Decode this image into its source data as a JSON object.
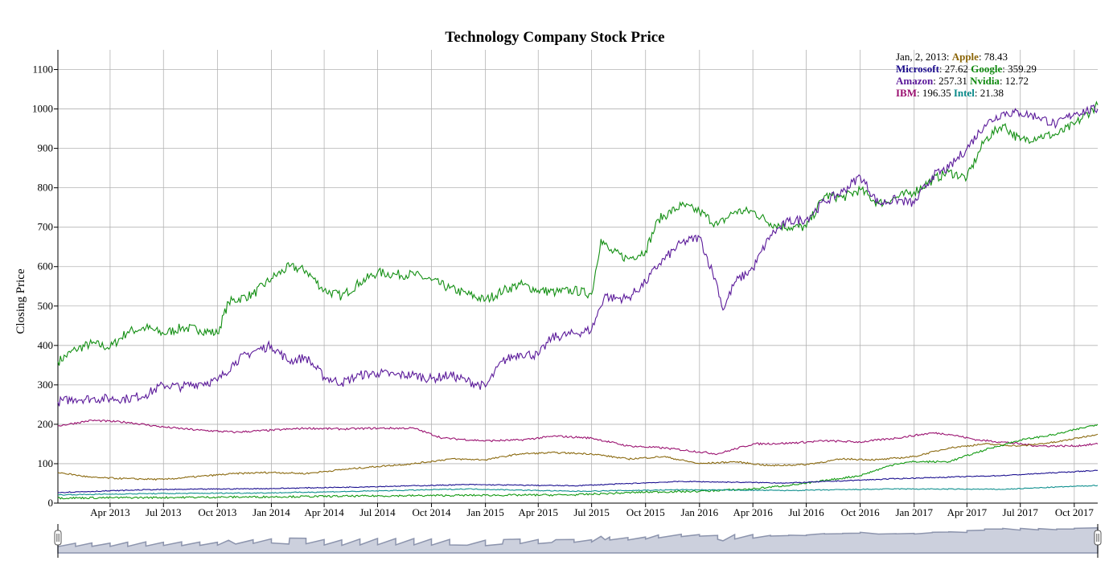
{
  "chart_data": {
    "type": "line",
    "title": "Technology Company Stock Price",
    "ylabel": "Closing Price",
    "xlabel": "",
    "ylim": [
      0,
      1150
    ],
    "y_ticks": [
      "0",
      "100",
      "200",
      "300",
      "400",
      "500",
      "600",
      "700",
      "800",
      "900",
      "1000",
      "1100"
    ],
    "x_ticks": [
      "Apr 2013",
      "Jul 2013",
      "Oct 2013",
      "Jan 2014",
      "Apr 2014",
      "Jul 2014",
      "Oct 2014",
      "Jan 2015",
      "Apr 2015",
      "Jul 2015",
      "Oct 2015",
      "Jan 2016",
      "Apr 2016",
      "Jul 2016",
      "Oct 2016",
      "Jan 2017",
      "Apr 2017",
      "Jul 2017",
      "Oct 2017"
    ],
    "x_tick_dates": [
      "2013-04-01",
      "2013-07-01",
      "2013-10-01",
      "2014-01-01",
      "2014-04-01",
      "2014-07-01",
      "2014-10-01",
      "2015-01-01",
      "2015-04-01",
      "2015-07-01",
      "2015-10-01",
      "2016-01-01",
      "2016-04-01",
      "2016-07-01",
      "2016-10-01",
      "2017-01-01",
      "2017-04-01",
      "2017-07-01",
      "2017-10-01"
    ],
    "x_range": [
      "2013-01-02",
      "2017-11-10"
    ],
    "grid": true,
    "legend_position": "top-right",
    "legend": {
      "date": "Jan, 2, 2013",
      "rows": [
        [
          {
            "name": "Apple",
            "value": "78.43",
            "color": "#8b6508"
          }
        ],
        [
          {
            "name": "Microsoft",
            "value": "27.62",
            "color": "#1a0a8c"
          },
          {
            "name": "Google",
            "value": "359.29",
            "color": "#108a10"
          }
        ],
        [
          {
            "name": "Amazon",
            "value": "257.31",
            "color": "#5b1a9a"
          },
          {
            "name": "Nvidia",
            "value": "12.72",
            "color": "#108a10"
          }
        ],
        [
          {
            "name": "IBM",
            "value": "196.35",
            "color": "#9a1070"
          },
          {
            "name": "Intel",
            "value": "21.38",
            "color": "#0a8a8a"
          }
        ]
      ]
    },
    "series": [
      {
        "name": "Google",
        "color": "#138f13",
        "points": [
          [
            "2013-01-02",
            359
          ],
          [
            "2013-02-01",
            390
          ],
          [
            "2013-03-01",
            405
          ],
          [
            "2013-04-01",
            395
          ],
          [
            "2013-05-01",
            435
          ],
          [
            "2013-06-01",
            445
          ],
          [
            "2013-07-01",
            430
          ],
          [
            "2013-08-01",
            445
          ],
          [
            "2013-09-01",
            440
          ],
          [
            "2013-10-01",
            430
          ],
          [
            "2013-10-20",
            510
          ],
          [
            "2013-12-01",
            530
          ],
          [
            "2014-01-01",
            570
          ],
          [
            "2014-02-01",
            600
          ],
          [
            "2014-03-01",
            590
          ],
          [
            "2014-04-01",
            540
          ],
          [
            "2014-05-01",
            525
          ],
          [
            "2014-06-01",
            560
          ],
          [
            "2014-07-01",
            585
          ],
          [
            "2014-08-01",
            580
          ],
          [
            "2014-09-01",
            580
          ],
          [
            "2014-10-01",
            565
          ],
          [
            "2014-11-01",
            545
          ],
          [
            "2015-01-01",
            515
          ],
          [
            "2015-02-01",
            540
          ],
          [
            "2015-03-01",
            555
          ],
          [
            "2015-04-01",
            540
          ],
          [
            "2015-05-01",
            535
          ],
          [
            "2015-06-01",
            540
          ],
          [
            "2015-07-01",
            530
          ],
          [
            "2015-07-17",
            670
          ],
          [
            "2015-08-01",
            640
          ],
          [
            "2015-09-01",
            620
          ],
          [
            "2015-10-01",
            640
          ],
          [
            "2015-10-23",
            720
          ],
          [
            "2015-12-01",
            755
          ],
          [
            "2016-01-01",
            740
          ],
          [
            "2016-02-01",
            705
          ],
          [
            "2016-03-01",
            740
          ],
          [
            "2016-04-01",
            740
          ],
          [
            "2016-05-01",
            710
          ],
          [
            "2016-06-01",
            700
          ],
          [
            "2016-07-01",
            700
          ],
          [
            "2016-08-01",
            780
          ],
          [
            "2016-09-01",
            775
          ],
          [
            "2016-10-01",
            795
          ],
          [
            "2016-11-01",
            760
          ],
          [
            "2016-12-01",
            775
          ],
          [
            "2017-01-01",
            790
          ],
          [
            "2017-02-01",
            820
          ],
          [
            "2017-03-01",
            840
          ],
          [
            "2017-04-01",
            825
          ],
          [
            "2017-05-01",
            920
          ],
          [
            "2017-06-01",
            960
          ],
          [
            "2017-07-01",
            920
          ],
          [
            "2017-08-01",
            930
          ],
          [
            "2017-09-01",
            935
          ],
          [
            "2017-10-01",
            960
          ],
          [
            "2017-11-10",
            1010
          ]
        ]
      },
      {
        "name": "Amazon",
        "color": "#5b1a9a",
        "points": [
          [
            "2013-01-02",
            257
          ],
          [
            "2013-02-01",
            265
          ],
          [
            "2013-03-01",
            265
          ],
          [
            "2013-04-01",
            265
          ],
          [
            "2013-05-01",
            265
          ],
          [
            "2013-06-01",
            275
          ],
          [
            "2013-07-01",
            300
          ],
          [
            "2013-08-01",
            295
          ],
          [
            "2013-09-01",
            305
          ],
          [
            "2013-10-01",
            310
          ],
          [
            "2013-11-01",
            360
          ],
          [
            "2013-12-01",
            385
          ],
          [
            "2014-01-01",
            400
          ],
          [
            "2014-01-31",
            360
          ],
          [
            "2014-03-01",
            370
          ],
          [
            "2014-04-01",
            320
          ],
          [
            "2014-05-01",
            305
          ],
          [
            "2014-06-01",
            325
          ],
          [
            "2014-07-01",
            330
          ],
          [
            "2014-08-01",
            325
          ],
          [
            "2014-09-01",
            325
          ],
          [
            "2014-10-01",
            315
          ],
          [
            "2014-11-01",
            325
          ],
          [
            "2014-12-01",
            310
          ],
          [
            "2015-01-01",
            295
          ],
          [
            "2015-01-30",
            360
          ],
          [
            "2015-03-01",
            380
          ],
          [
            "2015-04-01",
            375
          ],
          [
            "2015-04-24",
            420
          ],
          [
            "2015-06-01",
            430
          ],
          [
            "2015-07-01",
            440
          ],
          [
            "2015-07-24",
            530
          ],
          [
            "2015-08-01",
            520
          ],
          [
            "2015-09-01",
            520
          ],
          [
            "2015-10-01",
            560
          ],
          [
            "2015-10-23",
            605
          ],
          [
            "2015-12-01",
            660
          ],
          [
            "2016-01-01",
            675
          ],
          [
            "2016-02-01",
            550
          ],
          [
            "2016-02-10",
            490
          ],
          [
            "2016-03-01",
            560
          ],
          [
            "2016-04-01",
            595
          ],
          [
            "2016-05-01",
            680
          ],
          [
            "2016-06-01",
            715
          ],
          [
            "2016-07-01",
            720
          ],
          [
            "2016-08-01",
            765
          ],
          [
            "2016-09-01",
            790
          ],
          [
            "2016-10-01",
            830
          ],
          [
            "2016-11-01",
            760
          ],
          [
            "2016-12-01",
            770
          ],
          [
            "2017-01-01",
            760
          ],
          [
            "2017-02-01",
            830
          ],
          [
            "2017-03-01",
            850
          ],
          [
            "2017-04-01",
            900
          ],
          [
            "2017-05-01",
            960
          ],
          [
            "2017-06-01",
            990
          ],
          [
            "2017-07-01",
            990
          ],
          [
            "2017-08-01",
            980
          ],
          [
            "2017-09-01",
            960
          ],
          [
            "2017-10-01",
            990
          ],
          [
            "2017-11-10",
            1000
          ]
        ]
      },
      {
        "name": "IBM",
        "color": "#9b1371",
        "points": [
          [
            "2013-01-02",
            196
          ],
          [
            "2013-03-01",
            210
          ],
          [
            "2013-05-01",
            205
          ],
          [
            "2013-07-01",
            193
          ],
          [
            "2013-09-01",
            185
          ],
          [
            "2013-11-01",
            180
          ],
          [
            "2014-01-01",
            185
          ],
          [
            "2014-03-01",
            190
          ],
          [
            "2014-05-01",
            188
          ],
          [
            "2014-07-01",
            190
          ],
          [
            "2014-09-01",
            190
          ],
          [
            "2014-10-20",
            165
          ],
          [
            "2015-01-01",
            158
          ],
          [
            "2015-03-01",
            160
          ],
          [
            "2015-05-01",
            170
          ],
          [
            "2015-07-01",
            165
          ],
          [
            "2015-09-01",
            145
          ],
          [
            "2015-11-01",
            140
          ],
          [
            "2016-01-01",
            130
          ],
          [
            "2016-02-01",
            125
          ],
          [
            "2016-04-01",
            150
          ],
          [
            "2016-06-01",
            152
          ],
          [
            "2016-08-01",
            158
          ],
          [
            "2016-10-01",
            155
          ],
          [
            "2016-12-01",
            165
          ],
          [
            "2017-02-01",
            178
          ],
          [
            "2017-03-01",
            175
          ],
          [
            "2017-04-20",
            160
          ],
          [
            "2017-06-01",
            155
          ],
          [
            "2017-08-01",
            145
          ],
          [
            "2017-10-01",
            145
          ],
          [
            "2017-11-10",
            150
          ]
        ]
      },
      {
        "name": "Apple",
        "color": "#8b6a10",
        "points": [
          [
            "2013-01-02",
            78
          ],
          [
            "2013-03-01",
            65
          ],
          [
            "2013-05-01",
            62
          ],
          [
            "2013-07-01",
            60
          ],
          [
            "2013-09-01",
            68
          ],
          [
            "2013-11-01",
            75
          ],
          [
            "2014-01-01",
            78
          ],
          [
            "2014-03-01",
            75
          ],
          [
            "2014-05-01",
            85
          ],
          [
            "2014-07-01",
            93
          ],
          [
            "2014-09-01",
            100
          ],
          [
            "2014-11-01",
            112
          ],
          [
            "2015-01-01",
            110
          ],
          [
            "2015-03-01",
            125
          ],
          [
            "2015-05-01",
            128
          ],
          [
            "2015-07-01",
            125
          ],
          [
            "2015-09-01",
            112
          ],
          [
            "2015-11-01",
            118
          ],
          [
            "2016-01-01",
            100
          ],
          [
            "2016-03-01",
            105
          ],
          [
            "2016-05-01",
            95
          ],
          [
            "2016-07-01",
            98
          ],
          [
            "2016-09-01",
            112
          ],
          [
            "2016-11-01",
            110
          ],
          [
            "2017-01-01",
            118
          ],
          [
            "2017-03-01",
            140
          ],
          [
            "2017-05-01",
            150
          ],
          [
            "2017-07-01",
            145
          ],
          [
            "2017-09-01",
            155
          ],
          [
            "2017-11-10",
            175
          ]
        ]
      },
      {
        "name": "Nvidia",
        "color": "#139a13",
        "points": [
          [
            "2013-01-02",
            13
          ],
          [
            "2013-06-01",
            14
          ],
          [
            "2014-01-01",
            16
          ],
          [
            "2014-06-01",
            18
          ],
          [
            "2015-01-01",
            20
          ],
          [
            "2015-06-01",
            21
          ],
          [
            "2015-10-01",
            28
          ],
          [
            "2016-01-01",
            30
          ],
          [
            "2016-04-01",
            36
          ],
          [
            "2016-07-01",
            50
          ],
          [
            "2016-10-01",
            70
          ],
          [
            "2016-12-01",
            100
          ],
          [
            "2017-01-01",
            105
          ],
          [
            "2017-03-01",
            105
          ],
          [
            "2017-05-01",
            135
          ],
          [
            "2017-07-01",
            160
          ],
          [
            "2017-09-01",
            175
          ],
          [
            "2017-11-10",
            200
          ]
        ]
      },
      {
        "name": "Microsoft",
        "color": "#1b1090",
        "points": [
          [
            "2013-01-02",
            27
          ],
          [
            "2013-06-01",
            34
          ],
          [
            "2014-01-01",
            37
          ],
          [
            "2014-06-01",
            41
          ],
          [
            "2014-12-01",
            47
          ],
          [
            "2015-06-01",
            44
          ],
          [
            "2015-12-01",
            55
          ],
          [
            "2016-06-01",
            51
          ],
          [
            "2016-12-01",
            62
          ],
          [
            "2017-06-01",
            70
          ],
          [
            "2017-11-10",
            83
          ]
        ]
      },
      {
        "name": "Intel",
        "color": "#10908f",
        "points": [
          [
            "2013-01-02",
            21
          ],
          [
            "2013-06-01",
            24
          ],
          [
            "2014-01-01",
            26
          ],
          [
            "2014-06-01",
            30
          ],
          [
            "2014-12-01",
            36
          ],
          [
            "2015-06-01",
            30
          ],
          [
            "2015-12-01",
            34
          ],
          [
            "2016-06-01",
            32
          ],
          [
            "2016-12-01",
            36
          ],
          [
            "2017-06-01",
            35
          ],
          [
            "2017-11-10",
            45
          ]
        ]
      }
    ]
  },
  "overview": {
    "color_fill": "#ccd0dd",
    "color_line": "#8c94ad"
  }
}
